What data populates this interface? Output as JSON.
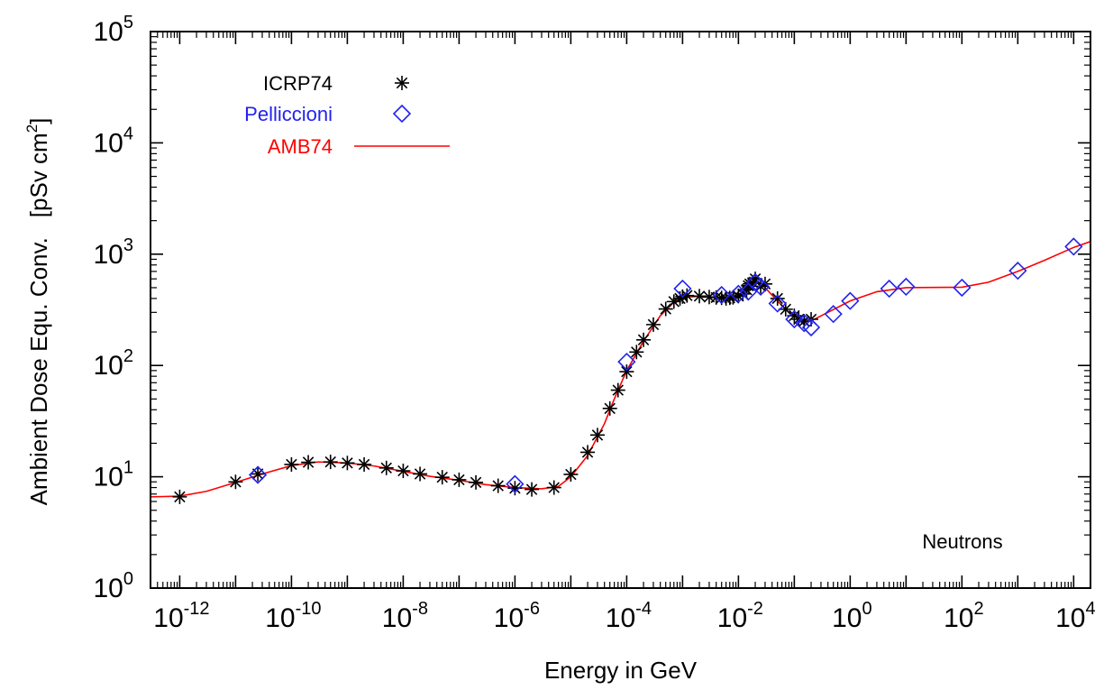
{
  "chart_data": {
    "type": "scatter",
    "title": "",
    "xlabel": "Energy in GeV",
    "ylabel_main": "Ambient Dose Equ. Conv.",
    "ylabel_unit_base": "[pSv cm",
    "ylabel_unit_exp": "2",
    "ylabel_unit_close": "]",
    "xscale": "log",
    "yscale": "log",
    "xlim": [
      3e-13,
      20000
    ],
    "ylim": [
      1,
      100000
    ],
    "x_ticks": [
      {
        "value": 1e-12,
        "base": "10",
        "exp": "-12"
      },
      {
        "value": 1e-10,
        "base": "10",
        "exp": "-10"
      },
      {
        "value": 1e-08,
        "base": "10",
        "exp": "-8"
      },
      {
        "value": 1e-06,
        "base": "10",
        "exp": "-6"
      },
      {
        "value": 0.0001,
        "base": "10",
        "exp": "-4"
      },
      {
        "value": 0.01,
        "base": "10",
        "exp": "-2"
      },
      {
        "value": 1,
        "base": "10",
        "exp": "0"
      },
      {
        "value": 100,
        "base": "10",
        "exp": "2"
      },
      {
        "value": 10000,
        "base": "10",
        "exp": "4"
      }
    ],
    "y_ticks": [
      {
        "value": 1,
        "base": "10",
        "exp": "0"
      },
      {
        "value": 10,
        "base": "10",
        "exp": "1"
      },
      {
        "value": 100,
        "base": "10",
        "exp": "2"
      },
      {
        "value": 1000,
        "base": "10",
        "exp": "3"
      },
      {
        "value": 10000,
        "base": "10",
        "exp": "4"
      },
      {
        "value": 100000,
        "base": "10",
        "exp": "5"
      }
    ],
    "legend_position": "top-left",
    "annotation": "Neutrons",
    "series": [
      {
        "name": "ICRP74",
        "kind": "points",
        "marker": "asterisk",
        "color": "#000000",
        "points": [
          [
            1e-12,
            6.6
          ],
          [
            1e-11,
            9.0
          ],
          [
            2.5e-11,
            10.6
          ],
          [
            1e-10,
            12.9
          ],
          [
            2e-10,
            13.5
          ],
          [
            5e-10,
            13.6
          ],
          [
            1e-09,
            13.3
          ],
          [
            2e-09,
            12.9
          ],
          [
            5e-09,
            12.0
          ],
          [
            1e-08,
            11.3
          ],
          [
            2e-08,
            10.6
          ],
          [
            5e-08,
            9.9
          ],
          [
            1e-07,
            9.4
          ],
          [
            2e-07,
            8.9
          ],
          [
            5e-07,
            8.3
          ],
          [
            1e-06,
            7.9
          ],
          [
            2e-06,
            7.7
          ],
          [
            5e-06,
            8.0
          ],
          [
            1e-05,
            10.5
          ],
          [
            2e-05,
            16.6
          ],
          [
            3e-05,
            23.7
          ],
          [
            5e-05,
            41.1
          ],
          [
            7e-05,
            60.0
          ],
          [
            0.0001,
            88.0
          ],
          [
            0.00015,
            132
          ],
          [
            0.0002,
            170
          ],
          [
            0.0003,
            233
          ],
          [
            0.0005,
            322
          ],
          [
            0.0007,
            375
          ],
          [
            0.0009,
            400
          ],
          [
            0.001,
            416
          ],
          [
            0.0012,
            425
          ],
          [
            0.002,
            420
          ],
          [
            0.003,
            412
          ],
          [
            0.004,
            408
          ],
          [
            0.005,
            405
          ],
          [
            0.006,
            400
          ],
          [
            0.007,
            405
          ],
          [
            0.008,
            409
          ],
          [
            0.01,
            420
          ],
          [
            0.012,
            440
          ],
          [
            0.014,
            480
          ],
          [
            0.015,
            520
          ],
          [
            0.016,
            540
          ],
          [
            0.018,
            555
          ],
          [
            0.02,
            600
          ],
          [
            0.025,
            515
          ],
          [
            0.03,
            540
          ],
          [
            0.05,
            400
          ],
          [
            0.07,
            320
          ],
          [
            0.1,
            280
          ],
          [
            0.12,
            260
          ],
          [
            0.15,
            250
          ],
          [
            0.2,
            260
          ]
        ]
      },
      {
        "name": "Pelliccioni",
        "kind": "points",
        "marker": "diamond",
        "color": "#2222ee",
        "points": [
          [
            2.5e-11,
            10.4
          ],
          [
            1e-06,
            8.6
          ],
          [
            0.0001,
            108
          ],
          [
            0.001,
            490
          ],
          [
            0.005,
            430
          ],
          [
            0.01,
            440
          ],
          [
            0.015,
            460
          ],
          [
            0.02,
            560
          ],
          [
            0.025,
            510
          ],
          [
            0.05,
            360
          ],
          [
            0.1,
            260
          ],
          [
            0.15,
            240
          ],
          [
            0.2,
            220
          ],
          [
            0.5,
            290
          ],
          [
            1,
            380
          ],
          [
            5,
            490
          ],
          [
            10,
            510
          ],
          [
            100,
            500
          ],
          [
            1000,
            710
          ],
          [
            10000,
            1170
          ]
        ]
      },
      {
        "name": "AMB74",
        "kind": "line",
        "color": "#ff0000",
        "points": [
          [
            3e-13,
            6.6
          ],
          [
            1e-12,
            6.7
          ],
          [
            3e-12,
            7.4
          ],
          [
            1e-11,
            8.9
          ],
          [
            3e-11,
            10.6
          ],
          [
            1e-10,
            12.6
          ],
          [
            3e-10,
            13.6
          ],
          [
            1e-09,
            13.3
          ],
          [
            3e-09,
            12.5
          ],
          [
            1e-08,
            11.2
          ],
          [
            3e-08,
            10.1
          ],
          [
            1e-07,
            9.3
          ],
          [
            3e-07,
            8.5
          ],
          [
            1e-06,
            8.0
          ],
          [
            3e-06,
            7.8
          ],
          [
            6e-06,
            8.2
          ],
          [
            1e-05,
            10.0
          ],
          [
            2e-05,
            15.5
          ],
          [
            4e-05,
            30
          ],
          [
            6e-05,
            50
          ],
          [
            0.0001,
            90
          ],
          [
            0.0002,
            165
          ],
          [
            0.0004,
            280
          ],
          [
            0.0007,
            370
          ],
          [
            0.001,
            410
          ],
          [
            0.002,
            418
          ],
          [
            0.004,
            408
          ],
          [
            0.007,
            405
          ],
          [
            0.01,
            418
          ],
          [
            0.015,
            490
          ],
          [
            0.02,
            560
          ],
          [
            0.025,
            540
          ],
          [
            0.03,
            500
          ],
          [
            0.05,
            380
          ],
          [
            0.08,
            300
          ],
          [
            0.12,
            265
          ],
          [
            0.16,
            250
          ],
          [
            0.2,
            252
          ],
          [
            0.4,
            300
          ],
          [
            1,
            380
          ],
          [
            3,
            460
          ],
          [
            10,
            500
          ],
          [
            100,
            505
          ],
          [
            300,
            560
          ],
          [
            1000,
            700
          ],
          [
            3000,
            880
          ],
          [
            10000,
            1150
          ],
          [
            20000,
            1300
          ]
        ]
      }
    ]
  }
}
